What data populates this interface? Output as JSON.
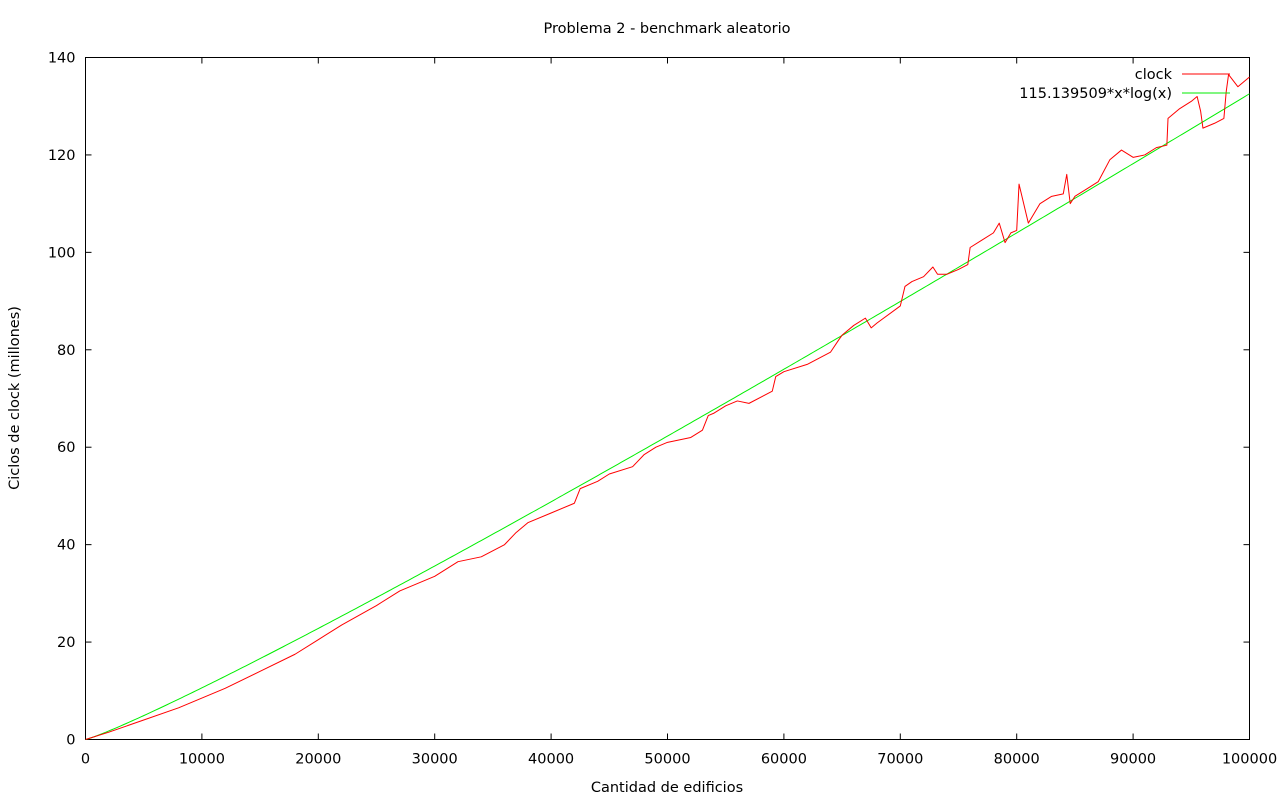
{
  "chart_data": {
    "type": "line",
    "title": "Problema 2 - benchmark aleatorio",
    "xlabel": "Cantidad de edificios",
    "ylabel": "Ciclos de clock (millones)",
    "xlim": [
      0,
      100000
    ],
    "ylim": [
      0,
      140
    ],
    "xticks": [
      0,
      10000,
      20000,
      30000,
      40000,
      50000,
      60000,
      70000,
      80000,
      90000,
      100000
    ],
    "yticks": [
      0,
      20,
      40,
      60,
      80,
      100,
      120,
      140
    ],
    "grid": false,
    "legend_position": "top-right",
    "series": [
      {
        "name": "clock",
        "color": "#ff0000",
        "x": [
          0,
          2000,
          5000,
          8000,
          10000,
          12000,
          15000,
          18000,
          20000,
          22000,
          25000,
          27000,
          30000,
          32000,
          34000,
          36000,
          37000,
          38000,
          40000,
          42000,
          42500,
          44000,
          45000,
          47000,
          48000,
          49000,
          50000,
          52000,
          53000,
          53500,
          54000,
          55000,
          56000,
          57000,
          59000,
          59300,
          60000,
          62000,
          64000,
          64700,
          65000,
          66000,
          67000,
          67500,
          68000,
          70000,
          70400,
          71000,
          72000,
          72800,
          73200,
          74000,
          75000,
          75800,
          76000,
          77000,
          78000,
          78500,
          79000,
          79500,
          80000,
          80200,
          81000,
          82000,
          83000,
          84000,
          84300,
          84600,
          85000,
          86000,
          87000,
          88000,
          89000,
          90000,
          91000,
          92000,
          92900,
          93000,
          94000,
          95000,
          95500,
          95800,
          96000,
          97000,
          97800,
          98000,
          98200,
          99000,
          100000
        ],
        "y": [
          0,
          1.5,
          4,
          6.5,
          8.5,
          10.5,
          14,
          17.5,
          20.5,
          23.5,
          27.5,
          30.5,
          33.5,
          36.5,
          37.5,
          40,
          42.5,
          44.5,
          46.5,
          48.5,
          51.5,
          53,
          54.5,
          56,
          58.5,
          60,
          61,
          62,
          63.5,
          66.5,
          67,
          68.5,
          69.5,
          69,
          71.5,
          74.5,
          75.5,
          77,
          79.5,
          82,
          83,
          85,
          86.5,
          84.5,
          85.5,
          89,
          93,
          94,
          95,
          97,
          95.5,
          95.5,
          96.5,
          97.5,
          101,
          102.5,
          104,
          106,
          102,
          104,
          104.5,
          114,
          106,
          110,
          111.5,
          112,
          116,
          110,
          111.5,
          113,
          114.5,
          119,
          121,
          119.5,
          120,
          121.5,
          122,
          127.5,
          129.5,
          131,
          132,
          129,
          125.5,
          126.5,
          127.5,
          133,
          136.5,
          134,
          136
        ]
      },
      {
        "name": "115.139509*x*log(x)",
        "color": "#00ee00",
        "function": "115.139509*x*log(x)"
      }
    ]
  }
}
